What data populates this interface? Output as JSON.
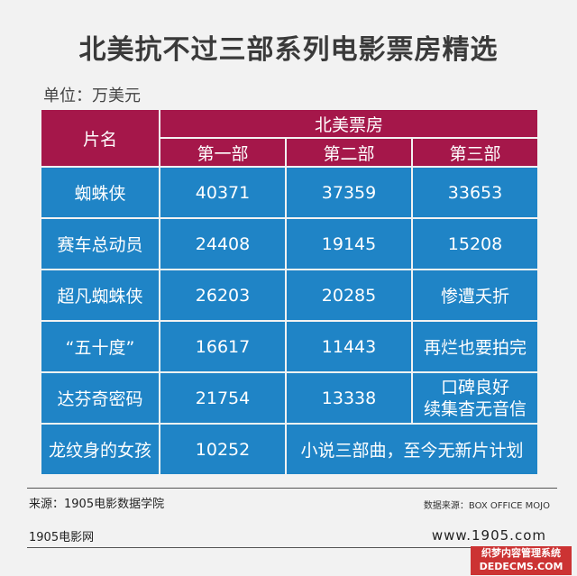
{
  "title": "北美抗不过三部系列电影票房精选",
  "unit": "单位：万美元",
  "table": {
    "col_name": "片名",
    "group_header": "北美票房",
    "sub_headers": [
      "第一部",
      "第二部",
      "第三部"
    ],
    "rows": [
      {
        "name": "蜘蛛侠",
        "p1": "40371",
        "p2": "37359",
        "p3": "33653"
      },
      {
        "name": "赛车总动员",
        "p1": "24408",
        "p2": "19145",
        "p3": "15208"
      },
      {
        "name": "超凡蜘蛛侠",
        "p1": "26203",
        "p2": "20285",
        "p3": "惨遭夭折"
      },
      {
        "name": "“五十度”",
        "p1": "16617",
        "p2": "11443",
        "p3": "再烂也要拍完"
      },
      {
        "name": "达芬奇密码",
        "p1": "21754",
        "p2": "13338",
        "p3a": "口碑良好",
        "p3b": "续集杳无音信"
      },
      {
        "name": "龙纹身的女孩",
        "p1": "10252",
        "p23": "小说三部曲，至今无新片计划"
      }
    ]
  },
  "footer": {
    "source": "来源：1905电影数据学院",
    "data_source": "数据来源：BOX OFFICE MOJO",
    "brand": "1905电影网",
    "url": "www.1905.com"
  },
  "watermark": {
    "line1": "织梦内容管理系统",
    "line2": "DEDECMS.COM"
  }
}
